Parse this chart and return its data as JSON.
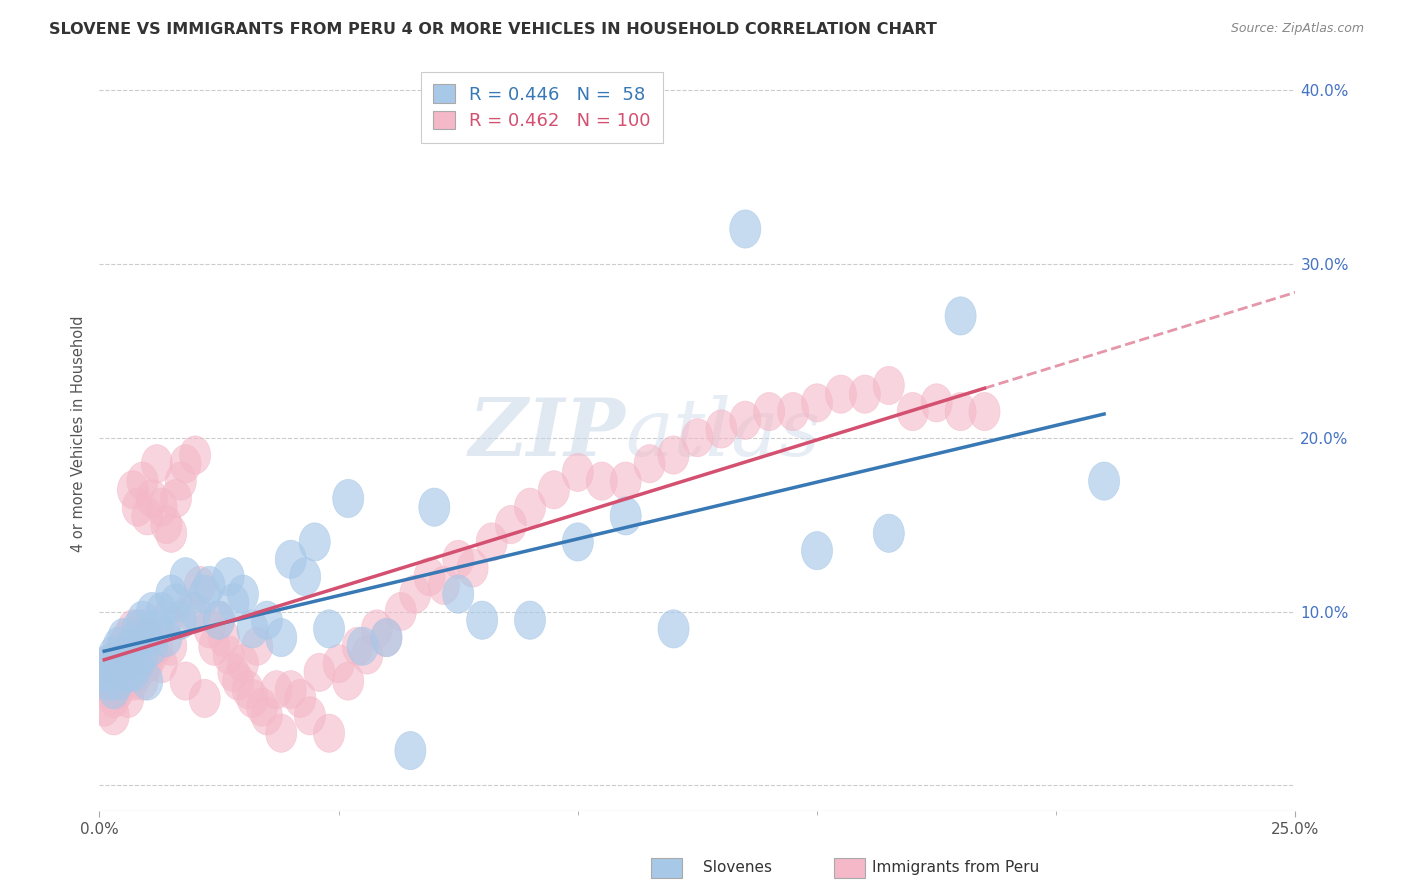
{
  "title": "SLOVENE VS IMMIGRANTS FROM PERU 4 OR MORE VEHICLES IN HOUSEHOLD CORRELATION CHART",
  "source": "Source: ZipAtlas.com",
  "ylabel": "4 or more Vehicles in Household",
  "xlim": [
    0.0,
    0.25
  ],
  "ylim": [
    -0.015,
    0.42
  ],
  "xticks_major": [
    0.0,
    0.25
  ],
  "xticks_minor": [
    0.05,
    0.1,
    0.15,
    0.2
  ],
  "yticks": [
    0.0,
    0.1,
    0.2,
    0.3,
    0.4
  ],
  "xticklabels_major": [
    "0.0%",
    "25.0%"
  ],
  "yticklabels": [
    "",
    "10.0%",
    "20.0%",
    "30.0%",
    "40.0%"
  ],
  "blue_R": "0.446",
  "blue_N": "58",
  "pink_R": "0.462",
  "pink_N": "100",
  "legend_label_blue": "Slovenes",
  "legend_label_pink": "Immigrants from Peru",
  "blue_color": "#a8c8e8",
  "pink_color": "#f4b8c8",
  "blue_line_color": "#3878b4",
  "pink_line_color": "#d45070",
  "watermark_zip": "ZIP",
  "watermark_atlas": "atlas",
  "background_color": "#ffffff",
  "grid_color": "#cccccc",
  "blue_scatter_x": [
    0.001,
    0.002,
    0.002,
    0.003,
    0.003,
    0.004,
    0.004,
    0.005,
    0.005,
    0.006,
    0.006,
    0.007,
    0.007,
    0.008,
    0.008,
    0.009,
    0.009,
    0.01,
    0.01,
    0.011,
    0.011,
    0.012,
    0.013,
    0.014,
    0.015,
    0.016,
    0.017,
    0.018,
    0.02,
    0.022,
    0.023,
    0.025,
    0.027,
    0.028,
    0.03,
    0.032,
    0.035,
    0.038,
    0.04,
    0.043,
    0.045,
    0.048,
    0.052,
    0.055,
    0.06,
    0.065,
    0.07,
    0.075,
    0.08,
    0.09,
    0.1,
    0.11,
    0.12,
    0.135,
    0.15,
    0.165,
    0.18,
    0.21
  ],
  "blue_scatter_y": [
    0.065,
    0.07,
    0.06,
    0.075,
    0.055,
    0.08,
    0.06,
    0.07,
    0.085,
    0.065,
    0.075,
    0.08,
    0.065,
    0.09,
    0.07,
    0.095,
    0.075,
    0.085,
    0.06,
    0.1,
    0.08,
    0.09,
    0.1,
    0.085,
    0.11,
    0.105,
    0.095,
    0.12,
    0.1,
    0.11,
    0.115,
    0.095,
    0.12,
    0.105,
    0.11,
    0.09,
    0.095,
    0.085,
    0.13,
    0.12,
    0.14,
    0.09,
    0.165,
    0.08,
    0.085,
    0.02,
    0.16,
    0.11,
    0.095,
    0.095,
    0.14,
    0.155,
    0.09,
    0.32,
    0.135,
    0.145,
    0.27,
    0.175
  ],
  "pink_scatter_x": [
    0.001,
    0.001,
    0.002,
    0.002,
    0.003,
    0.003,
    0.003,
    0.004,
    0.004,
    0.004,
    0.005,
    0.005,
    0.005,
    0.006,
    0.006,
    0.006,
    0.007,
    0.007,
    0.007,
    0.008,
    0.008,
    0.008,
    0.009,
    0.009,
    0.009,
    0.01,
    0.01,
    0.01,
    0.011,
    0.011,
    0.012,
    0.012,
    0.013,
    0.013,
    0.014,
    0.014,
    0.015,
    0.015,
    0.016,
    0.017,
    0.018,
    0.018,
    0.019,
    0.02,
    0.021,
    0.022,
    0.023,
    0.024,
    0.025,
    0.026,
    0.027,
    0.028,
    0.029,
    0.03,
    0.031,
    0.032,
    0.033,
    0.034,
    0.035,
    0.037,
    0.038,
    0.04,
    0.042,
    0.044,
    0.046,
    0.048,
    0.05,
    0.052,
    0.054,
    0.056,
    0.058,
    0.06,
    0.063,
    0.066,
    0.069,
    0.072,
    0.075,
    0.078,
    0.082,
    0.086,
    0.09,
    0.095,
    0.1,
    0.105,
    0.11,
    0.115,
    0.12,
    0.125,
    0.13,
    0.135,
    0.14,
    0.145,
    0.15,
    0.155,
    0.16,
    0.165,
    0.17,
    0.175,
    0.18,
    0.185
  ],
  "pink_scatter_y": [
    0.06,
    0.045,
    0.055,
    0.07,
    0.06,
    0.05,
    0.04,
    0.075,
    0.065,
    0.055,
    0.08,
    0.07,
    0.06,
    0.085,
    0.065,
    0.05,
    0.17,
    0.09,
    0.06,
    0.16,
    0.08,
    0.065,
    0.175,
    0.09,
    0.06,
    0.155,
    0.085,
    0.07,
    0.165,
    0.075,
    0.185,
    0.08,
    0.16,
    0.07,
    0.15,
    0.095,
    0.145,
    0.08,
    0.165,
    0.175,
    0.185,
    0.06,
    0.1,
    0.19,
    0.115,
    0.05,
    0.09,
    0.08,
    0.095,
    0.085,
    0.075,
    0.065,
    0.06,
    0.07,
    0.055,
    0.05,
    0.08,
    0.045,
    0.04,
    0.055,
    0.03,
    0.055,
    0.05,
    0.04,
    0.065,
    0.03,
    0.07,
    0.06,
    0.08,
    0.075,
    0.09,
    0.085,
    0.1,
    0.11,
    0.12,
    0.115,
    0.13,
    0.125,
    0.14,
    0.15,
    0.16,
    0.17,
    0.18,
    0.175,
    0.175,
    0.185,
    0.19,
    0.2,
    0.205,
    0.21,
    0.215,
    0.215,
    0.22,
    0.225,
    0.225,
    0.23,
    0.215,
    0.22,
    0.215,
    0.215
  ]
}
